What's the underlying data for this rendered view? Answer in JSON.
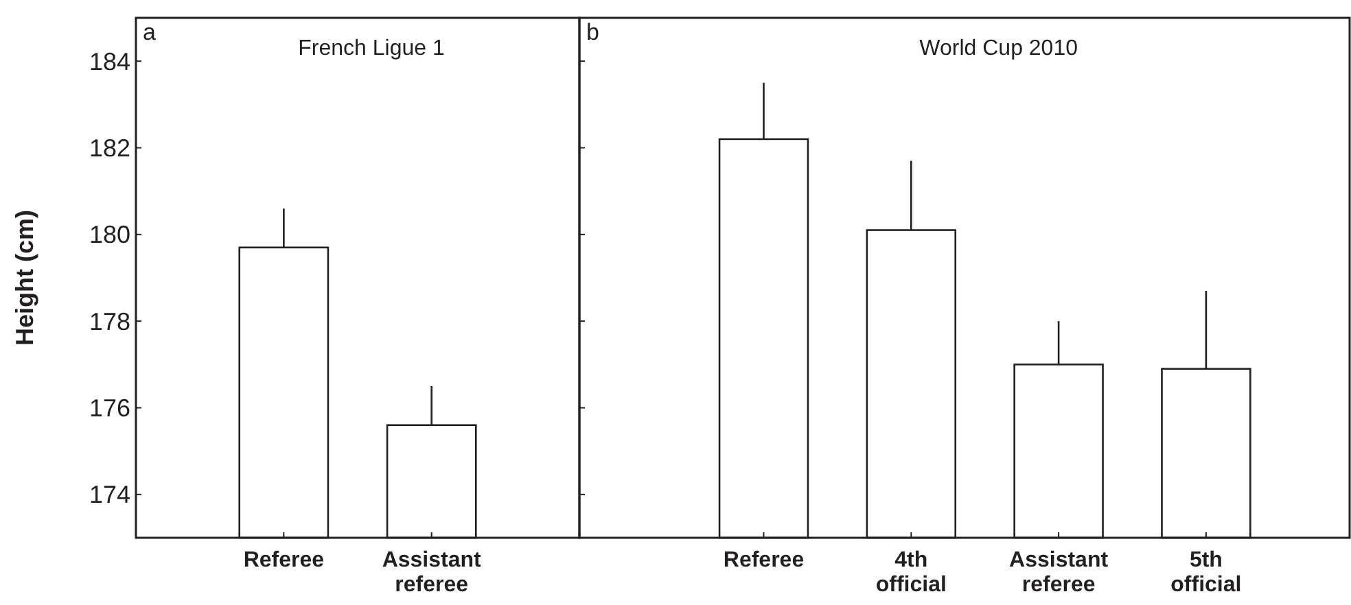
{
  "chart_data": [
    {
      "type": "bar",
      "title": "French Ligue 1",
      "ylabel": "Height (cm)",
      "annotations": [
        "a"
      ],
      "categories": [
        "Referee",
        "Assistant referee"
      ],
      "series": [
        {
          "color": "#ffffff",
          "values": [
            179.7,
            175.6
          ],
          "errors": [
            [
              179.7,
              180.6
            ],
            [
              175.6,
              176.5
            ]
          ]
        }
      ],
      "ylim": [
        173,
        185
      ],
      "yticks": [
        174,
        176,
        178,
        180,
        182,
        184
      ],
      "grid": false
    },
    {
      "type": "bar",
      "title": "World Cup 2010",
      "annotations": [
        "b"
      ],
      "categories": [
        "Referee",
        "4th official",
        "Assistant referee",
        "5th official"
      ],
      "series": [
        {
          "color": "#ffffff",
          "values": [
            182.2,
            180.1,
            177.0,
            176.9
          ],
          "errors": [
            [
              182.2,
              183.5
            ],
            [
              180.1,
              181.7
            ],
            [
              177.0,
              178.0
            ],
            [
              176.9,
              178.7
            ]
          ]
        }
      ],
      "ylim": [
        173,
        185
      ],
      "yticks": [
        174,
        176,
        178,
        180,
        182,
        184
      ],
      "tick_labels": "x",
      "grid": false
    }
  ]
}
